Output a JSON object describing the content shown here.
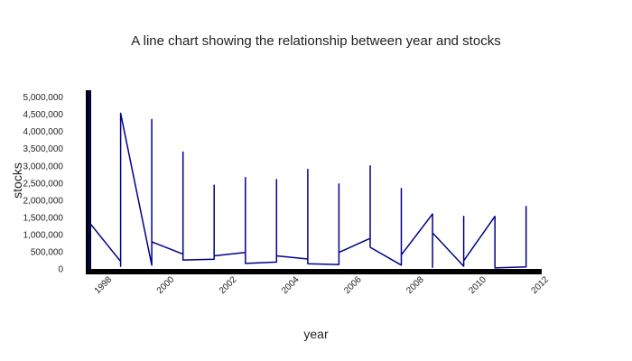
{
  "chart_data": {
    "type": "line",
    "title": "A line chart showing the relationship between year and stocks",
    "xlabel": "year",
    "ylabel": "stocks",
    "xlim": [
      1997.5,
      2012
    ],
    "ylim": [
      0,
      5200000
    ],
    "x_ticks": [
      1998,
      2000,
      2002,
      2004,
      2006,
      2008,
      2010,
      2012
    ],
    "x_tick_labels": [
      "1998",
      "2000",
      "2002",
      "2004",
      "2006",
      "2008",
      "2010",
      "2012"
    ],
    "y_ticks": [
      0,
      500000,
      1000000,
      1500000,
      2000000,
      2500000,
      3000000,
      3500000,
      4000000,
      4500000,
      5000000
    ],
    "y_tick_labels": [
      "0",
      "500,000",
      "1,000,000",
      "1,500,000",
      "2,000,000",
      "2,500,000",
      "3,000,000",
      "3,500,000",
      "4,000,000",
      "4,500,000",
      "5,000,000"
    ],
    "grid": false,
    "legend": "none",
    "colors": {
      "line": "#00008b",
      "axis": "#000000"
    },
    "series": [
      {
        "x": [
          1997.5,
          1997.5,
          1997.5,
          1998.5,
          1998.5,
          1998.5,
          1999.5,
          1999.5,
          1999.5,
          2000.5,
          2000.5,
          2000.5,
          2001.5,
          2001.5,
          2001.5,
          2002.5,
          2002.5,
          2002.5,
          2003.5,
          2003.5,
          2003.5,
          2004.5,
          2004.5,
          2004.5,
          2005.5,
          2005.5,
          2005.5,
          2006.5,
          2006.5,
          2006.5,
          2007.5,
          2007.5,
          2007.5,
          2008.5,
          2008.5,
          2008.5,
          2009.5,
          2009.5,
          2009.5,
          2010.5,
          2010.5,
          2010.5,
          2011.5,
          2011.5
        ],
        "y": [
          5200000,
          50000,
          1350000,
          220000,
          80000,
          4530000,
          110000,
          4350000,
          790000,
          430000,
          3400000,
          260000,
          280000,
          2440000,
          380000,
          480000,
          2660000,
          160000,
          200000,
          2600000,
          380000,
          290000,
          2900000,
          150000,
          130000,
          2470000,
          480000,
          890000,
          3000000,
          630000,
          110000,
          2340000,
          410000,
          1600000,
          50000,
          1050000,
          80000,
          1530000,
          240000,
          1530000,
          50000,
          30000,
          60000,
          1830000
        ]
      }
    ]
  }
}
